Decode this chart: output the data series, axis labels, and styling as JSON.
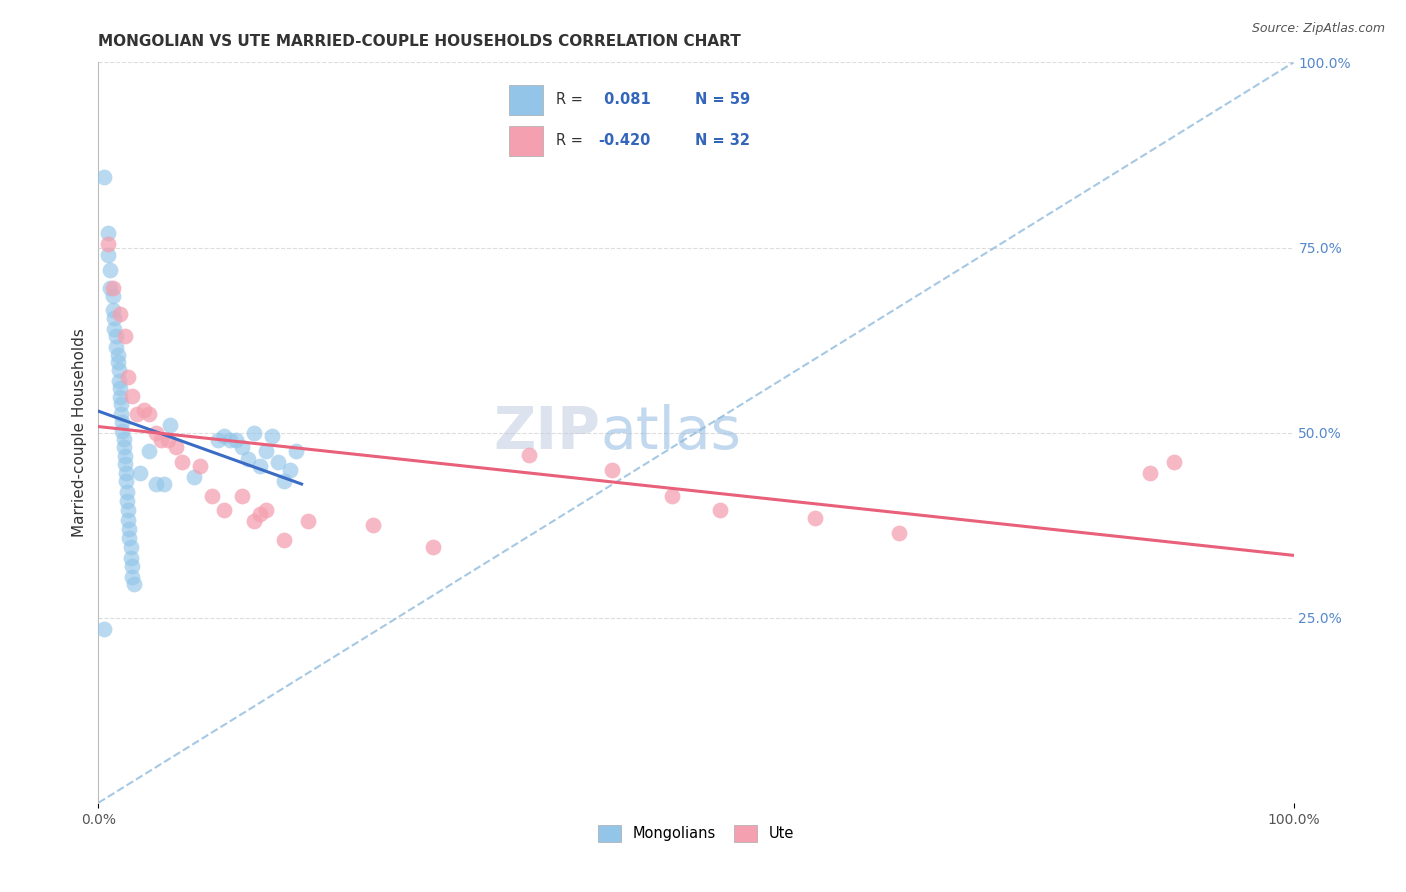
{
  "title": "MONGOLIAN VS UTE MARRIED-COUPLE HOUSEHOLDS CORRELATION CHART",
  "source": "Source: ZipAtlas.com",
  "ylabel": "Married-couple Households",
  "watermark": "ZIPatlas",
  "xlim": [
    0.0,
    1.0
  ],
  "ylim": [
    0.0,
    1.0
  ],
  "xtick_labels": [
    "0.0%",
    "100.0%"
  ],
  "ytick_labels": [
    "25.0%",
    "50.0%",
    "75.0%",
    "100.0%"
  ],
  "ytick_positions": [
    0.25,
    0.5,
    0.75,
    1.0
  ],
  "mongolian_color": "#92C5E8",
  "ute_color": "#F4A0B0",
  "mongolian_line_color": "#3B6CC4",
  "ute_line_color": "#E8607A",
  "dashed_line_color": "#90BBDD",
  "grid_color": "#DDDDDD",
  "mongolian_points": [
    [
      0.005,
      0.845
    ],
    [
      0.008,
      0.77
    ],
    [
      0.008,
      0.74
    ],
    [
      0.01,
      0.72
    ],
    [
      0.01,
      0.695
    ],
    [
      0.012,
      0.685
    ],
    [
      0.012,
      0.665
    ],
    [
      0.013,
      0.655
    ],
    [
      0.013,
      0.64
    ],
    [
      0.015,
      0.63
    ],
    [
      0.015,
      0.615
    ],
    [
      0.016,
      0.605
    ],
    [
      0.016,
      0.595
    ],
    [
      0.017,
      0.585
    ],
    [
      0.017,
      0.57
    ],
    [
      0.018,
      0.56
    ],
    [
      0.018,
      0.548
    ],
    [
      0.019,
      0.538
    ],
    [
      0.019,
      0.525
    ],
    [
      0.02,
      0.515
    ],
    [
      0.02,
      0.502
    ],
    [
      0.021,
      0.492
    ],
    [
      0.021,
      0.48
    ],
    [
      0.022,
      0.468
    ],
    [
      0.022,
      0.458
    ],
    [
      0.023,
      0.445
    ],
    [
      0.023,
      0.435
    ],
    [
      0.024,
      0.42
    ],
    [
      0.024,
      0.408
    ],
    [
      0.025,
      0.395
    ],
    [
      0.025,
      0.382
    ],
    [
      0.026,
      0.37
    ],
    [
      0.026,
      0.358
    ],
    [
      0.027,
      0.345
    ],
    [
      0.027,
      0.33
    ],
    [
      0.028,
      0.32
    ],
    [
      0.028,
      0.305
    ],
    [
      0.03,
      0.295
    ],
    [
      0.035,
      0.445
    ],
    [
      0.042,
      0.475
    ],
    [
      0.048,
      0.43
    ],
    [
      0.055,
      0.43
    ],
    [
      0.06,
      0.51
    ],
    [
      0.08,
      0.44
    ],
    [
      0.005,
      0.235
    ],
    [
      0.1,
      0.49
    ],
    [
      0.105,
      0.495
    ],
    [
      0.11,
      0.49
    ],
    [
      0.115,
      0.49
    ],
    [
      0.12,
      0.48
    ],
    [
      0.125,
      0.465
    ],
    [
      0.13,
      0.5
    ],
    [
      0.135,
      0.455
    ],
    [
      0.14,
      0.475
    ],
    [
      0.145,
      0.495
    ],
    [
      0.15,
      0.46
    ],
    [
      0.155,
      0.435
    ],
    [
      0.16,
      0.45
    ],
    [
      0.165,
      0.475
    ]
  ],
  "ute_points": [
    [
      0.008,
      0.755
    ],
    [
      0.012,
      0.695
    ],
    [
      0.018,
      0.66
    ],
    [
      0.022,
      0.63
    ],
    [
      0.025,
      0.575
    ],
    [
      0.028,
      0.55
    ],
    [
      0.032,
      0.525
    ],
    [
      0.038,
      0.53
    ],
    [
      0.042,
      0.525
    ],
    [
      0.048,
      0.5
    ],
    [
      0.052,
      0.49
    ],
    [
      0.058,
      0.49
    ],
    [
      0.065,
      0.48
    ],
    [
      0.07,
      0.46
    ],
    [
      0.085,
      0.455
    ],
    [
      0.095,
      0.415
    ],
    [
      0.105,
      0.395
    ],
    [
      0.12,
      0.415
    ],
    [
      0.13,
      0.38
    ],
    [
      0.135,
      0.39
    ],
    [
      0.14,
      0.395
    ],
    [
      0.155,
      0.355
    ],
    [
      0.175,
      0.38
    ],
    [
      0.23,
      0.375
    ],
    [
      0.28,
      0.345
    ],
    [
      0.36,
      0.47
    ],
    [
      0.43,
      0.45
    ],
    [
      0.48,
      0.415
    ],
    [
      0.52,
      0.395
    ],
    [
      0.6,
      0.385
    ],
    [
      0.67,
      0.365
    ],
    [
      0.88,
      0.445
    ],
    [
      0.9,
      0.46
    ]
  ],
  "title_fontsize": 11,
  "axis_label_fontsize": 11,
  "tick_fontsize": 10,
  "watermark_fontsize": 42,
  "watermark_color": "#C8DCF0",
  "watermark_alpha": 0.6,
  "source_fontsize": 9
}
